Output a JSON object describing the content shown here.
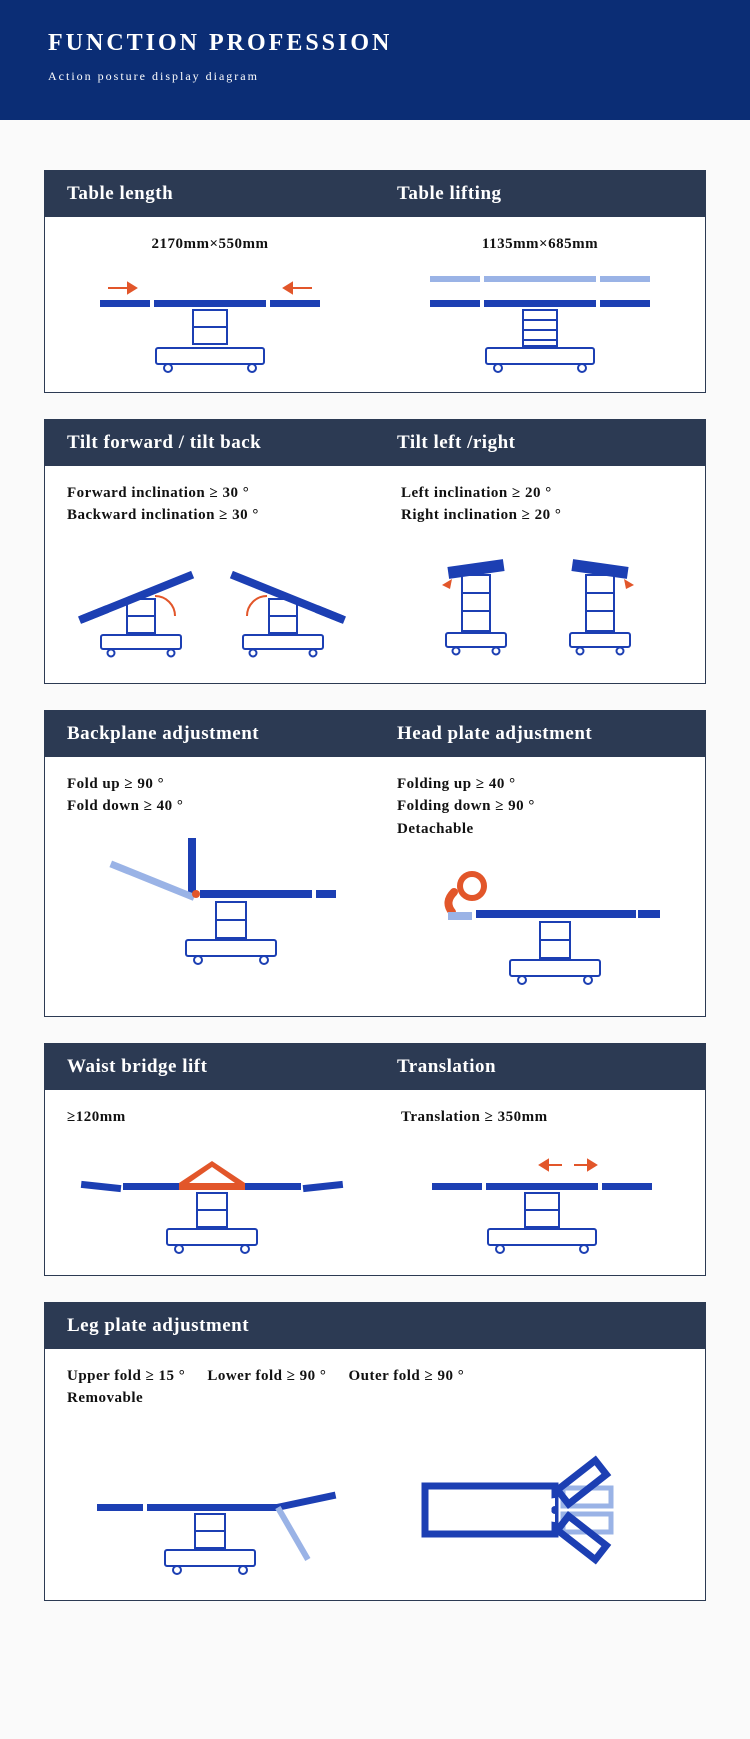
{
  "colors": {
    "hero_bg": "#0b2d75",
    "header_bg": "#2c3a53",
    "blue": "#1c3fb3",
    "light_blue": "#9ab3e6",
    "orange": "#e2562a",
    "white": "#ffffff",
    "text": "#111111"
  },
  "hero": {
    "title": "FUNCTION PROFESSION",
    "subtitle": "Action posture display diagram"
  },
  "sections": [
    {
      "id": "length-lift",
      "left": {
        "title": "Table length",
        "spec": "2170mm×550mm"
      },
      "right": {
        "title": "Table lifting",
        "spec": "1135mm×685mm"
      }
    },
    {
      "id": "tilt",
      "left": {
        "title": "Tilt forward / tilt back",
        "spec": "Forward inclination ≥ 30 °\nBackward inclination ≥ 30 °"
      },
      "right": {
        "title": "Tilt left /right",
        "spec": "Left inclination ≥ 20 °\nRight inclination ≥ 20 °"
      }
    },
    {
      "id": "back-head",
      "left": {
        "title": "Backplane adjustment",
        "spec": "Fold up ≥ 90 °\nFold down ≥ 40 °"
      },
      "right": {
        "title": "Head plate adjustment",
        "spec": "Folding up ≥ 40 °\nFolding down ≥ 90 °\nDetachable"
      }
    },
    {
      "id": "waist-trans",
      "left": {
        "title": "Waist bridge lift",
        "spec": "≥120mm"
      },
      "right": {
        "title": "Translation",
        "spec": "Translation ≥ 350mm"
      }
    },
    {
      "id": "leg",
      "title": "Leg plate adjustment",
      "specs": [
        "Upper fold ≥ 15 °\nRemovable",
        "Lower fold ≥ 90 °",
        "Outer fold ≥ 90 °"
      ]
    }
  ]
}
